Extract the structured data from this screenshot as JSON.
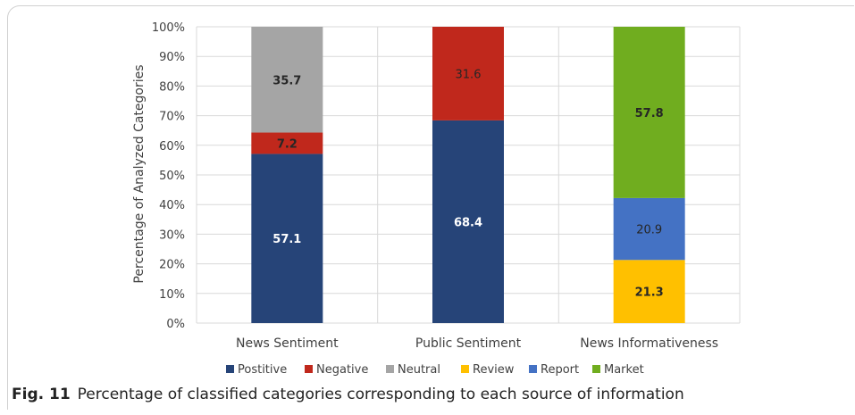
{
  "chart_data": {
    "type": "bar",
    "stacked": true,
    "ylabel": "Percentage of Analyzed Categories",
    "xlabel": "",
    "ylim": [
      0,
      100
    ],
    "y_ticks": [
      "0%",
      "10%",
      "20%",
      "30%",
      "40%",
      "50%",
      "60%",
      "70%",
      "80%",
      "90%",
      "100%"
    ],
    "categories": [
      "News Sentiment",
      "Public Sentiment",
      "News Informativeness"
    ],
    "grid": true,
    "legend_position": "bottom",
    "series": [
      {
        "name": "Postitive",
        "color": "#264478",
        "values": [
          57.1,
          68.4,
          null
        ],
        "labels": [
          "57.1",
          "68.4",
          ""
        ]
      },
      {
        "name": "Negative",
        "color": "#c0281c",
        "values": [
          7.2,
          31.6,
          null
        ],
        "labels": [
          "7.2",
          "31.6",
          ""
        ]
      },
      {
        "name": "Neutral",
        "color": "#a5a5a5",
        "values": [
          35.7,
          null,
          null
        ],
        "labels": [
          "35.7",
          "",
          ""
        ]
      },
      {
        "name": "Review",
        "color": "#ffc000",
        "values": [
          null,
          null,
          21.3
        ],
        "labels": [
          "",
          "",
          "21.3"
        ]
      },
      {
        "name": "Report",
        "color": "#4472c4",
        "values": [
          null,
          null,
          20.9
        ],
        "labels": [
          "",
          "",
          "20.9"
        ]
      },
      {
        "name": "Market",
        "color": "#70ad1f",
        "values": [
          null,
          null,
          57.8
        ],
        "labels": [
          "",
          "",
          "57.8"
        ]
      }
    ]
  },
  "caption": {
    "fig_label": "Fig. 11",
    "text": "Percentage of classified categories corresponding to each source of information"
  }
}
